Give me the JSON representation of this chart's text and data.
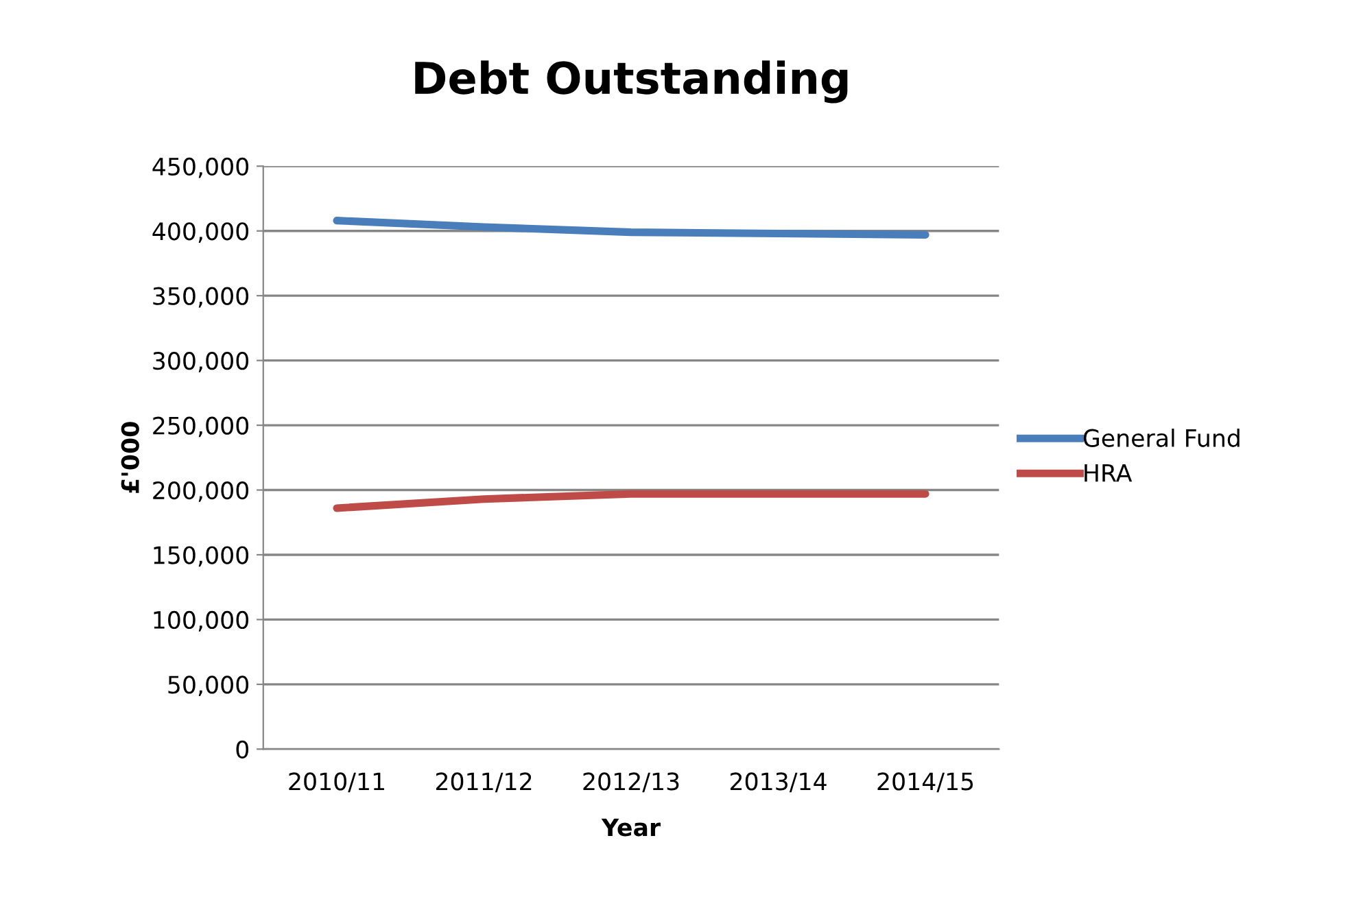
{
  "chart_data": {
    "type": "line",
    "title": "Debt Outstanding",
    "xlabel": "Year",
    "ylabel": "£'000",
    "categories": [
      "2010/11",
      "2011/12",
      "2012/13",
      "2013/14",
      "2014/15"
    ],
    "series": [
      {
        "name": "General Fund",
        "color": "#4a7ebb",
        "values": [
          408000,
          403000,
          399000,
          398000,
          397000
        ]
      },
      {
        "name": "HRA",
        "color": "#be4b48",
        "values": [
          186000,
          193000,
          197000,
          197000,
          197000
        ]
      }
    ],
    "ylim": [
      0,
      450000
    ],
    "yticks": [
      {
        "value": 0,
        "label": "0"
      },
      {
        "value": 50000,
        "label": "50,000"
      },
      {
        "value": 100000,
        "label": "100,000"
      },
      {
        "value": 150000,
        "label": "150,000"
      },
      {
        "value": 200000,
        "label": "200,000"
      },
      {
        "value": 250000,
        "label": "250,000"
      },
      {
        "value": 300000,
        "label": "300,000"
      },
      {
        "value": 350000,
        "label": "350,000"
      },
      {
        "value": 400000,
        "label": "400,000"
      },
      {
        "value": 450000,
        "label": "450,000"
      }
    ],
    "grid": "y",
    "legend": "right",
    "marker": "none",
    "line_style": "solid"
  }
}
